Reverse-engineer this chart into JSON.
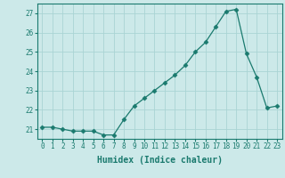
{
  "x": [
    0,
    1,
    2,
    3,
    4,
    5,
    6,
    7,
    8,
    9,
    10,
    11,
    12,
    13,
    14,
    15,
    16,
    17,
    18,
    19,
    20,
    21,
    22,
    23
  ],
  "y": [
    21.1,
    21.1,
    21.0,
    20.9,
    20.9,
    20.9,
    20.7,
    20.7,
    21.5,
    22.2,
    22.6,
    23.0,
    23.4,
    23.8,
    24.3,
    25.0,
    25.5,
    26.3,
    27.1,
    27.2,
    24.9,
    23.7,
    22.1,
    22.2
  ],
  "xlabel": "Humidex (Indice chaleur)",
  "ylim": [
    20.5,
    27.5
  ],
  "xlim": [
    -0.5,
    23.5
  ],
  "bg_color": "#cce9e9",
  "grid_color": "#aad4d4",
  "line_color": "#1a7a6e",
  "marker_color": "#1a7a6e",
  "yticks": [
    21,
    22,
    23,
    24,
    25,
    26,
    27
  ],
  "xticks": [
    0,
    1,
    2,
    3,
    4,
    5,
    6,
    7,
    8,
    9,
    10,
    11,
    12,
    13,
    14,
    15,
    16,
    17,
    18,
    19,
    20,
    21,
    22,
    23
  ]
}
